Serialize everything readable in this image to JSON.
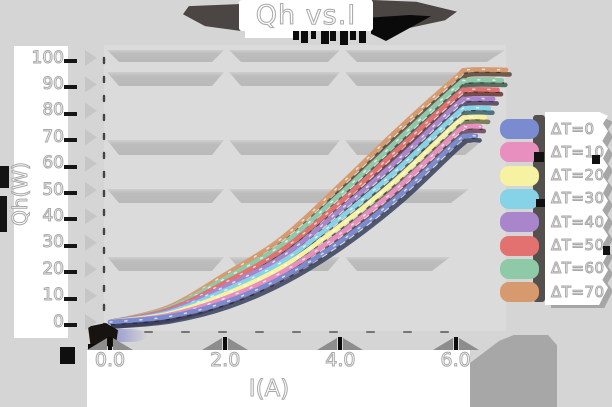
{
  "title": {
    "text": "Qh vs.I"
  },
  "axes": {
    "y": {
      "label": "Qh(W)",
      "ticks": [
        "0",
        "10",
        "20",
        "30",
        "40",
        "50",
        "60",
        "70",
        "80",
        "90",
        "100"
      ]
    },
    "x": {
      "label": "I(A)",
      "ticks": [
        "0.0",
        "2.0",
        "4.0",
        "6.0"
      ]
    }
  },
  "legend": {
    "items": [
      {
        "label": "ΔT=0",
        "color": "#7b8bcf"
      },
      {
        "label": "ΔT=10",
        "color": "#e88fc0"
      },
      {
        "label": "ΔT=20",
        "color": "#f6f2a2"
      },
      {
        "label": "ΔT=30",
        "color": "#86d2e6"
      },
      {
        "label": "ΔT=40",
        "color": "#a986cc"
      },
      {
        "label": "ΔT=50",
        "color": "#e2716f"
      },
      {
        "label": "ΔT=60",
        "color": "#8fcaa8"
      },
      {
        "label": "ΔT=70",
        "color": "#d69a6e"
      }
    ]
  },
  "chart_data": {
    "type": "line",
    "title": "Qh vs.I",
    "xlabel": "I(A)",
    "ylabel": "Qh(W)",
    "xlim": [
      0,
      6.6
    ],
    "ylim": [
      0,
      100
    ],
    "x_tick_values": [
      0,
      2,
      4,
      6
    ],
    "x_tick_labels": [
      "0.0",
      "2.0",
      "4.0",
      "6.0"
    ],
    "y_tick_values": [
      0,
      10,
      20,
      30,
      40,
      50,
      60,
      70,
      80,
      90,
      100
    ],
    "y_tick_labels": [
      "0",
      "10",
      "20",
      "30",
      "40",
      "50",
      "60",
      "70",
      "80",
      "90",
      "100"
    ],
    "grid": "horizontal-bands",
    "legend_position": "right",
    "x": [
      0,
      1,
      2,
      3,
      4,
      5,
      6,
      6.2
    ],
    "series": [
      {
        "name": "ΔT=0",
        "color": "#7b8bcf",
        "values": [
          0,
          2.0,
          7.5,
          17.0,
          30.5,
          47.5,
          68.0,
          70.5
        ]
      },
      {
        "name": "ΔT=10",
        "color": "#e88fc0",
        "values": [
          0,
          2.5,
          9.0,
          19.0,
          33.5,
          51.0,
          71.5,
          74.0
        ]
      },
      {
        "name": "ΔT=20",
        "color": "#f6f2a2",
        "values": [
          0,
          3.0,
          10.5,
          21.0,
          36.5,
          54.5,
          75.0,
          77.5
        ]
      },
      {
        "name": "ΔT=30",
        "color": "#86d2e6",
        "values": [
          0,
          3.5,
          12.0,
          23.0,
          39.5,
          58.0,
          78.5,
          81.0
        ]
      },
      {
        "name": "ΔT=40",
        "color": "#a986cc",
        "values": [
          0,
          4.0,
          13.5,
          25.0,
          42.5,
          61.5,
          82.0,
          84.5
        ]
      },
      {
        "name": "ΔT=50",
        "color": "#e2716f",
        "values": [
          0,
          4.5,
          15.0,
          27.5,
          45.5,
          65.5,
          85.5,
          88.0
        ]
      },
      {
        "name": "ΔT=60",
        "color": "#8fcaa8",
        "values": [
          0,
          5.0,
          16.5,
          29.5,
          48.5,
          69.0,
          89.0,
          91.5
        ]
      },
      {
        "name": "ΔT=70",
        "color": "#d69a6e",
        "values": [
          0,
          5.5,
          18.0,
          32.0,
          52.0,
          73.0,
          92.5,
          95.5
        ]
      }
    ]
  }
}
